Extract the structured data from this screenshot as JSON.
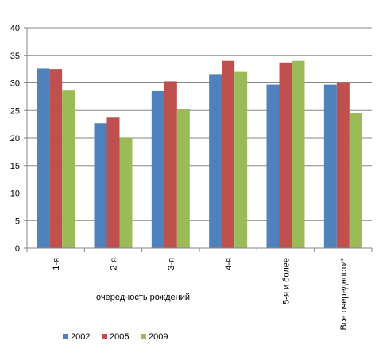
{
  "chart_data": {
    "type": "bar",
    "xlabel": "очередность рождений",
    "ylabel": "",
    "title": "",
    "ylim": [
      0,
      40
    ],
    "yticks": [
      0,
      5,
      10,
      15,
      20,
      25,
      30,
      35,
      40
    ],
    "grid": true,
    "legend_position": "bottom",
    "categories": [
      "1-я",
      "2-я",
      "3-я",
      "4-я",
      "5-я и более",
      "Все очередности*"
    ],
    "series": [
      {
        "name": "2002",
        "color": "#4f81bd",
        "values": [
          32.6,
          22.7,
          28.5,
          31.6,
          29.7,
          29.7
        ]
      },
      {
        "name": "2005",
        "color": "#c0504d",
        "values": [
          32.5,
          23.7,
          30.3,
          34.0,
          33.7,
          30.0
        ]
      },
      {
        "name": "2009",
        "color": "#9bbb59",
        "values": [
          28.6,
          20.1,
          25.2,
          32.0,
          34.0,
          24.6
        ]
      }
    ]
  }
}
